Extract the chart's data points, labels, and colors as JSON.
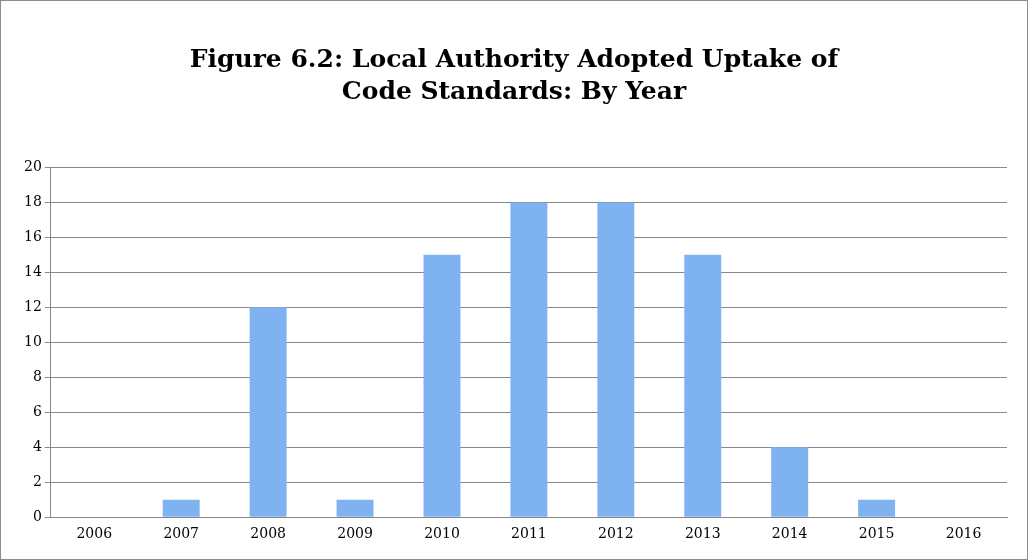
{
  "chart_data": {
    "type": "bar",
    "title": "Figure 6.2: Local Authority Adopted Uptake of Code Standards: By Year",
    "categories": [
      "2006",
      "2007",
      "2008",
      "2009",
      "2010",
      "2011",
      "2012",
      "2013",
      "2014",
      "2015",
      "2016"
    ],
    "values": [
      0,
      1,
      12,
      1,
      15,
      18,
      18,
      15,
      4,
      1,
      0
    ],
    "color": "#7fb2f0",
    "ylim": [
      0,
      20
    ],
    "yticks": [
      0,
      2,
      4,
      6,
      8,
      10,
      12,
      14,
      16,
      18,
      20
    ],
    "grid": "y"
  }
}
